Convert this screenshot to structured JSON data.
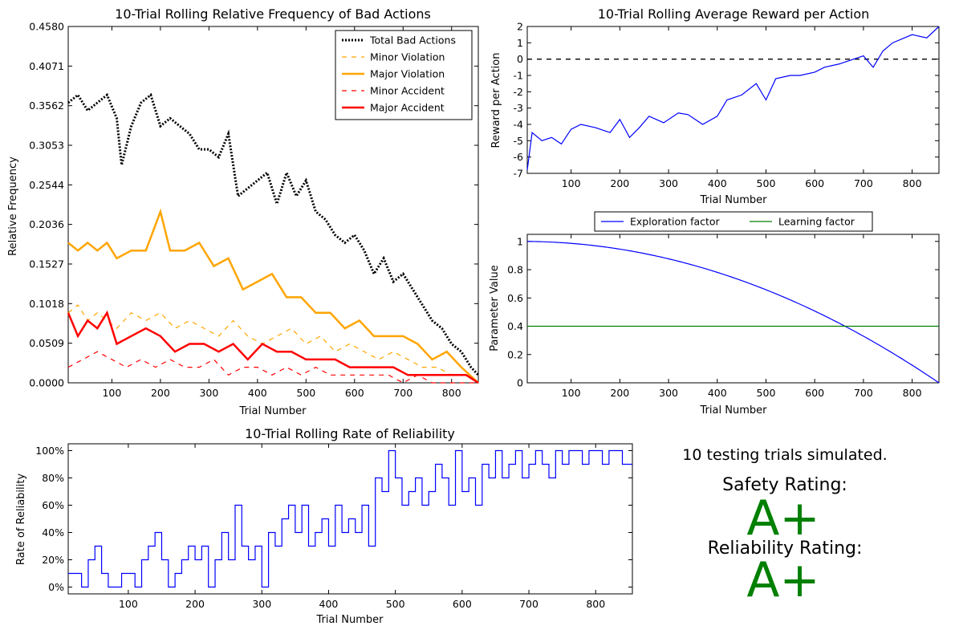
{
  "chart_data": [
    {
      "id": "bad",
      "type": "line",
      "title": "10-Trial Rolling Relative Frequency of Bad Actions",
      "xlabel": "Trial Number",
      "ylabel": "Relative Frequency",
      "xlim": [
        10,
        855
      ],
      "ylim": [
        0,
        0.458
      ],
      "xticks": [
        100,
        200,
        300,
        400,
        500,
        600,
        700,
        800
      ],
      "yticks": [
        0.0,
        0.0509,
        0.1018,
        0.1527,
        0.2036,
        0.2544,
        0.3053,
        0.3562,
        0.4071,
        0.458
      ],
      "ytick_labels": [
        "0.0000",
        "0.0509",
        "0.1018",
        "0.1527",
        "0.2036",
        "0.2544",
        "0.3053",
        "0.3562",
        "0.4071",
        "0.4580"
      ],
      "legend_position": "top-right",
      "series": [
        {
          "name": "Total Bad Actions",
          "color": "#000000",
          "style": "dotted",
          "x": [
            10,
            30,
            50,
            70,
            90,
            110,
            120,
            140,
            160,
            180,
            200,
            220,
            240,
            260,
            280,
            300,
            320,
            340,
            360,
            380,
            400,
            420,
            440,
            460,
            480,
            500,
            520,
            540,
            560,
            580,
            600,
            620,
            640,
            660,
            680,
            700,
            720,
            740,
            760,
            780,
            800,
            820,
            840,
            855
          ],
          "y": [
            0.36,
            0.37,
            0.35,
            0.36,
            0.37,
            0.34,
            0.28,
            0.33,
            0.36,
            0.37,
            0.33,
            0.34,
            0.33,
            0.32,
            0.3,
            0.3,
            0.29,
            0.32,
            0.24,
            0.25,
            0.26,
            0.27,
            0.23,
            0.27,
            0.24,
            0.26,
            0.22,
            0.21,
            0.19,
            0.18,
            0.19,
            0.17,
            0.14,
            0.16,
            0.13,
            0.14,
            0.12,
            0.1,
            0.08,
            0.07,
            0.05,
            0.04,
            0.02,
            0.01
          ]
        },
        {
          "name": "Minor Violation",
          "color": "#FFA500",
          "style": "dashed",
          "x": [
            10,
            30,
            50,
            70,
            90,
            110,
            140,
            170,
            200,
            230,
            260,
            290,
            320,
            350,
            380,
            410,
            440,
            470,
            500,
            530,
            560,
            590,
            620,
            650,
            680,
            710,
            740,
            770,
            800,
            830,
            855
          ],
          "y": [
            0.09,
            0.1,
            0.08,
            0.09,
            0.08,
            0.07,
            0.09,
            0.08,
            0.09,
            0.07,
            0.08,
            0.07,
            0.06,
            0.08,
            0.06,
            0.05,
            0.06,
            0.07,
            0.05,
            0.06,
            0.04,
            0.05,
            0.04,
            0.03,
            0.04,
            0.03,
            0.02,
            0.02,
            0.01,
            0.01,
            0.0
          ]
        },
        {
          "name": "Major Violation",
          "color": "#FFA500",
          "style": "solid",
          "x": [
            10,
            30,
            50,
            70,
            90,
            110,
            140,
            170,
            200,
            220,
            250,
            280,
            310,
            340,
            370,
            400,
            430,
            460,
            490,
            520,
            550,
            580,
            610,
            640,
            670,
            700,
            730,
            760,
            790,
            820,
            855
          ],
          "y": [
            0.18,
            0.17,
            0.18,
            0.17,
            0.18,
            0.16,
            0.17,
            0.17,
            0.22,
            0.17,
            0.17,
            0.18,
            0.15,
            0.16,
            0.12,
            0.13,
            0.14,
            0.11,
            0.11,
            0.09,
            0.09,
            0.07,
            0.08,
            0.06,
            0.06,
            0.06,
            0.05,
            0.03,
            0.04,
            0.02,
            0.0
          ]
        },
        {
          "name": "Minor Accident",
          "color": "#FF0000",
          "style": "dashed",
          "x": [
            10,
            40,
            70,
            100,
            130,
            160,
            190,
            220,
            250,
            280,
            310,
            340,
            370,
            400,
            430,
            460,
            490,
            520,
            550,
            580,
            610,
            640,
            670,
            700,
            730,
            760,
            790,
            820,
            855
          ],
          "y": [
            0.02,
            0.03,
            0.04,
            0.03,
            0.02,
            0.03,
            0.02,
            0.03,
            0.02,
            0.02,
            0.03,
            0.01,
            0.02,
            0.02,
            0.01,
            0.02,
            0.01,
            0.02,
            0.01,
            0.01,
            0.01,
            0.01,
            0.01,
            0.0,
            0.01,
            0.0,
            0.0,
            0.0,
            0.0
          ]
        },
        {
          "name": "Major Accident",
          "color": "#FF0000",
          "style": "solid",
          "x": [
            10,
            30,
            50,
            70,
            90,
            110,
            140,
            170,
            200,
            230,
            260,
            290,
            320,
            350,
            380,
            410,
            440,
            470,
            500,
            530,
            560,
            590,
            620,
            650,
            680,
            710,
            740,
            770,
            800,
            830,
            855
          ],
          "y": [
            0.09,
            0.06,
            0.08,
            0.07,
            0.09,
            0.05,
            0.06,
            0.07,
            0.06,
            0.04,
            0.05,
            0.05,
            0.04,
            0.05,
            0.03,
            0.05,
            0.04,
            0.04,
            0.03,
            0.03,
            0.03,
            0.02,
            0.02,
            0.02,
            0.02,
            0.01,
            0.01,
            0.01,
            0.01,
            0.01,
            0.0
          ]
        }
      ]
    },
    {
      "id": "reward",
      "type": "line",
      "title": "10-Trial Rolling Average Reward per Action",
      "xlabel": "Trial Number",
      "ylabel": "Reward per Action",
      "xlim": [
        10,
        855
      ],
      "ylim": [
        -7,
        2
      ],
      "xticks": [
        100,
        200,
        300,
        400,
        500,
        600,
        700,
        800
      ],
      "yticks": [
        -7,
        -6,
        -5,
        -4,
        -3,
        -2,
        -1,
        0,
        1,
        2
      ],
      "reference_line": {
        "y": 0,
        "color": "#000000",
        "style": "dashed"
      },
      "series": [
        {
          "color": "#0000FF",
          "x": [
            10,
            20,
            40,
            60,
            80,
            100,
            120,
            150,
            180,
            200,
            220,
            240,
            260,
            290,
            320,
            340,
            370,
            400,
            420,
            450,
            480,
            500,
            520,
            550,
            570,
            600,
            620,
            650,
            680,
            700,
            720,
            740,
            760,
            800,
            830,
            855
          ],
          "y": [
            -6.8,
            -4.5,
            -5.0,
            -4.8,
            -5.2,
            -4.3,
            -4.0,
            -4.2,
            -4.5,
            -3.7,
            -4.8,
            -4.2,
            -3.5,
            -3.9,
            -3.3,
            -3.4,
            -4.0,
            -3.5,
            -2.5,
            -2.2,
            -1.5,
            -2.5,
            -1.2,
            -1.0,
            -1.0,
            -0.8,
            -0.5,
            -0.3,
            0.0,
            0.2,
            -0.5,
            0.5,
            1.0,
            1.5,
            1.3,
            2.0
          ]
        }
      ]
    },
    {
      "id": "params",
      "type": "line",
      "xlabel": "Trial Number",
      "ylabel": "Parameter Value",
      "xlim": [
        10,
        855
      ],
      "ylim": [
        0,
        1.05
      ],
      "xticks": [
        100,
        200,
        300,
        400,
        500,
        600,
        700,
        800
      ],
      "yticks": [
        0.0,
        0.2,
        0.4,
        0.6,
        0.8,
        1.0
      ],
      "legend_position": "above",
      "series": [
        {
          "name": "Exploration factor",
          "color": "#0000FF",
          "formula": "1 - t^2 / 855^2"
        },
        {
          "name": "Learning factor",
          "color": "#008000",
          "constant": 0.4
        }
      ]
    },
    {
      "id": "reliability",
      "type": "line",
      "title": "10-Trial Rolling Rate of Reliability",
      "xlabel": "Trial Number",
      "ylabel": "Rate of Reliability",
      "xlim": [
        10,
        855
      ],
      "ylim": [
        -5,
        105
      ],
      "xticks": [
        100,
        200,
        300,
        400,
        500,
        600,
        700,
        800
      ],
      "yticks": [
        0,
        20,
        40,
        60,
        80,
        100
      ],
      "ytick_labels": [
        "0%",
        "20%",
        "40%",
        "60%",
        "80%",
        "100%"
      ],
      "series": [
        {
          "color": "#0000FF",
          "x": [
            10,
            20,
            30,
            40,
            50,
            60,
            70,
            80,
            90,
            100,
            110,
            120,
            130,
            140,
            150,
            160,
            170,
            180,
            190,
            200,
            210,
            220,
            230,
            240,
            250,
            260,
            270,
            280,
            290,
            300,
            310,
            320,
            330,
            340,
            350,
            360,
            370,
            380,
            390,
            400,
            410,
            420,
            430,
            440,
            450,
            460,
            470,
            480,
            490,
            500,
            510,
            520,
            530,
            540,
            550,
            560,
            570,
            580,
            590,
            600,
            610,
            620,
            630,
            640,
            650,
            660,
            670,
            680,
            690,
            700,
            710,
            720,
            730,
            740,
            750,
            760,
            770,
            780,
            790,
            800,
            810,
            820,
            830,
            840,
            855
          ],
          "y": [
            10,
            10,
            0,
            20,
            30,
            10,
            0,
            0,
            10,
            10,
            0,
            20,
            30,
            40,
            20,
            0,
            10,
            20,
            30,
            20,
            30,
            0,
            20,
            40,
            20,
            60,
            30,
            20,
            30,
            0,
            40,
            30,
            50,
            60,
            40,
            60,
            30,
            40,
            50,
            30,
            60,
            40,
            50,
            40,
            60,
            30,
            80,
            70,
            100,
            80,
            60,
            70,
            80,
            60,
            70,
            90,
            80,
            60,
            100,
            70,
            80,
            60,
            90,
            80,
            100,
            80,
            90,
            100,
            80,
            90,
            100,
            90,
            80,
            100,
            90,
            100,
            100,
            90,
            100,
            100,
            90,
            100,
            100,
            90,
            90
          ]
        }
      ]
    }
  ],
  "summary": {
    "trials_text": "10 testing trials simulated.",
    "safety_label": "Safety Rating:",
    "safety_grade": "A+",
    "reliability_label": "Reliability Rating:",
    "reliability_grade": "A+"
  }
}
